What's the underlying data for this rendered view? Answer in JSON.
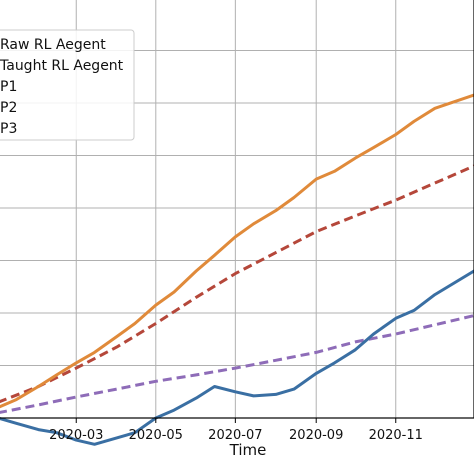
{
  "chart_data": {
    "type": "line",
    "xlabel": "Time",
    "ylabel": "",
    "title": "",
    "x_tick_labels": [
      "2020-03",
      "2020-05",
      "2020-07",
      "2020-09",
      "2020-11"
    ],
    "x_ticks": [
      "2020-03-01",
      "2020-05-01",
      "2020-07-01",
      "2020-09-01",
      "2020-11-01"
    ],
    "x_range": [
      "2020-01-01",
      "2020-12-31"
    ],
    "y_range": [
      0,
      8
    ],
    "y_gridlines": [
      1,
      2,
      3,
      4,
      5,
      6,
      7
    ],
    "grid": true,
    "legend_position": "top-left",
    "series": [
      {
        "name": "Raw RL Aegent",
        "color": "#e08a3a",
        "style": "solid",
        "points": [
          [
            "2020-01-01",
            0.2
          ],
          [
            "2020-01-15",
            0.35
          ],
          [
            "2020-02-01",
            0.6
          ],
          [
            "2020-02-15",
            0.82
          ],
          [
            "2020-03-01",
            1.05
          ],
          [
            "2020-03-15",
            1.25
          ],
          [
            "2020-04-01",
            1.55
          ],
          [
            "2020-04-15",
            1.8
          ],
          [
            "2020-05-01",
            2.15
          ],
          [
            "2020-05-15",
            2.4
          ],
          [
            "2020-06-01",
            2.8
          ],
          [
            "2020-06-15",
            3.1
          ],
          [
            "2020-07-01",
            3.45
          ],
          [
            "2020-07-15",
            3.7
          ],
          [
            "2020-08-01",
            3.95
          ],
          [
            "2020-08-15",
            4.2
          ],
          [
            "2020-09-01",
            4.55
          ],
          [
            "2020-09-15",
            4.7
          ],
          [
            "2020-10-01",
            4.95
          ],
          [
            "2020-10-15",
            5.15
          ],
          [
            "2020-11-01",
            5.4
          ],
          [
            "2020-11-15",
            5.65
          ],
          [
            "2020-12-01",
            5.9
          ],
          [
            "2020-12-31",
            6.15
          ]
        ]
      },
      {
        "name": "Taught RL Aegent",
        "color": "#3a6fa3",
        "style": "solid",
        "points": [
          [
            "2020-01-01",
            0.0
          ],
          [
            "2020-01-15",
            -0.1
          ],
          [
            "2020-02-01",
            -0.22
          ],
          [
            "2020-02-15",
            -0.28
          ],
          [
            "2020-03-01",
            -0.42
          ],
          [
            "2020-03-15",
            -0.5
          ],
          [
            "2020-04-01",
            -0.38
          ],
          [
            "2020-04-15",
            -0.28
          ],
          [
            "2020-05-01",
            0.0
          ],
          [
            "2020-05-15",
            0.15
          ],
          [
            "2020-06-01",
            0.38
          ],
          [
            "2020-06-15",
            0.6
          ],
          [
            "2020-07-01",
            0.5
          ],
          [
            "2020-07-15",
            0.42
          ],
          [
            "2020-08-01",
            0.45
          ],
          [
            "2020-08-15",
            0.55
          ],
          [
            "2020-09-01",
            0.85
          ],
          [
            "2020-09-15",
            1.05
          ],
          [
            "2020-10-01",
            1.3
          ],
          [
            "2020-10-15",
            1.6
          ],
          [
            "2020-11-01",
            1.9
          ],
          [
            "2020-11-15",
            2.05
          ],
          [
            "2020-12-01",
            2.35
          ],
          [
            "2020-12-31",
            2.8
          ]
        ]
      },
      {
        "name": "P1",
        "color": "#b5473a",
        "style": "dashed",
        "points": [
          [
            "2020-01-01",
            0.3
          ],
          [
            "2020-02-01",
            0.6
          ],
          [
            "2020-03-01",
            0.95
          ],
          [
            "2020-04-01",
            1.35
          ],
          [
            "2020-05-01",
            1.8
          ],
          [
            "2020-06-01",
            2.3
          ],
          [
            "2020-07-01",
            2.75
          ],
          [
            "2020-08-01",
            3.15
          ],
          [
            "2020-09-01",
            3.55
          ],
          [
            "2020-10-01",
            3.85
          ],
          [
            "2020-11-01",
            4.15
          ],
          [
            "2020-12-31",
            4.8
          ]
        ]
      },
      {
        "name": "P2",
        "color": "#8e6cb8",
        "style": "dashed",
        "points": [
          [
            "2020-01-01",
            0.1
          ],
          [
            "2020-02-01",
            0.25
          ],
          [
            "2020-03-01",
            0.4
          ],
          [
            "2020-04-01",
            0.55
          ],
          [
            "2020-05-01",
            0.7
          ],
          [
            "2020-06-01",
            0.82
          ],
          [
            "2020-07-01",
            0.95
          ],
          [
            "2020-08-01",
            1.1
          ],
          [
            "2020-09-01",
            1.25
          ],
          [
            "2020-10-01",
            1.45
          ],
          [
            "2020-11-01",
            1.6
          ],
          [
            "2020-12-31",
            1.95
          ]
        ]
      },
      {
        "name": "P3",
        "color": "#cccccc",
        "style": "dashed",
        "points": []
      }
    ]
  }
}
